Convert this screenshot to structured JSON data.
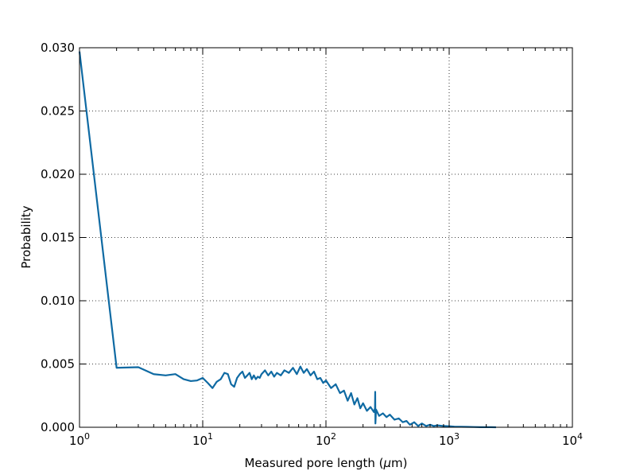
{
  "chart_data": {
    "type": "line",
    "title": "",
    "xlabel_prefix": "Measured pore length (",
    "xlabel_symbol": "μ",
    "xlabel_suffix": "m)",
    "ylabel": "Probability",
    "x_scale": "log",
    "xlim": [
      1,
      10000
    ],
    "ylim": [
      0,
      0.03
    ],
    "grid": true,
    "x_ticks": [
      {
        "base": "10",
        "exp": "0"
      },
      {
        "base": "10",
        "exp": "1"
      },
      {
        "base": "10",
        "exp": "2"
      },
      {
        "base": "10",
        "exp": "3"
      },
      {
        "base": "10",
        "exp": "4"
      }
    ],
    "y_ticks": [
      "0.000",
      "0.005",
      "0.010",
      "0.015",
      "0.020",
      "0.025",
      "0.030"
    ],
    "line_color": "#0f6aa3",
    "series": [
      {
        "x": [
          1,
          2,
          3,
          4,
          5,
          6,
          7,
          8,
          9,
          10,
          11,
          12,
          13,
          14,
          15,
          16,
          17,
          18,
          19,
          20,
          21,
          22,
          23,
          24,
          25,
          26,
          27,
          28,
          29,
          30,
          32,
          34,
          36,
          38,
          40,
          43,
          46,
          50,
          54,
          58,
          62,
          66,
          70,
          75,
          80,
          85,
          90,
          95,
          100,
          110,
          120,
          130,
          140,
          150,
          160,
          170,
          180,
          190,
          200,
          215,
          230,
          245,
          250,
          251,
          252,
          255,
          270,
          290,
          310,
          330,
          360,
          390,
          420,
          450,
          480,
          520,
          560,
          600,
          650,
          700,
          750,
          800,
          900,
          1000,
          1100,
          1250,
          1400,
          1600,
          1800,
          2000,
          2200,
          2400
        ],
        "y": [
          0.0297,
          0.0047,
          0.00475,
          0.0042,
          0.0041,
          0.0042,
          0.0038,
          0.00365,
          0.0037,
          0.0039,
          0.0035,
          0.0031,
          0.0036,
          0.0038,
          0.0043,
          0.0042,
          0.0034,
          0.0032,
          0.0039,
          0.0042,
          0.0044,
          0.0039,
          0.0041,
          0.0043,
          0.0038,
          0.0041,
          0.0038,
          0.004,
          0.0039,
          0.0042,
          0.0045,
          0.0041,
          0.0044,
          0.004,
          0.0043,
          0.0041,
          0.0045,
          0.0043,
          0.0047,
          0.0042,
          0.0048,
          0.0043,
          0.0046,
          0.0041,
          0.0044,
          0.0038,
          0.0039,
          0.0035,
          0.0037,
          0.0031,
          0.0034,
          0.0027,
          0.0029,
          0.0021,
          0.0027,
          0.0018,
          0.0023,
          0.0015,
          0.0019,
          0.0013,
          0.0016,
          0.0012,
          0.0015,
          0.0028,
          0.0003,
          0.0014,
          0.0009,
          0.0011,
          0.0008,
          0.001,
          0.0006,
          0.0007,
          0.0004,
          0.0005,
          0.0002,
          0.0004,
          0.0001,
          0.0003,
          0.0001,
          0.0002,
          0.0001,
          0.00015,
          0.0001,
          8e-05,
          5e-05,
          4e-05,
          3e-05,
          2e-05,
          1e-05,
          1e-05,
          1e-05,
          0.0
        ]
      }
    ]
  }
}
